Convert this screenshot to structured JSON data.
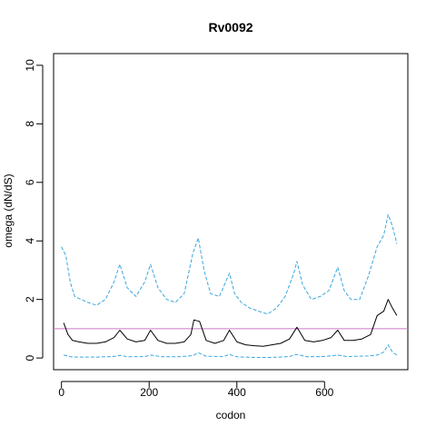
{
  "chart_data": {
    "type": "line",
    "title": "Rv0092",
    "xlabel": "codon",
    "ylabel": "omega (dN/dS)",
    "xlim": [
      -18,
      790
    ],
    "ylim": [
      -0.4,
      10.4
    ],
    "x_ticks": [
      0,
      200,
      400,
      600
    ],
    "y_ticks": [
      0,
      2,
      4,
      6,
      8,
      10
    ],
    "reference_line": {
      "y": 1,
      "color": "#CC79C8"
    },
    "colors": {
      "estimate": "#000000",
      "bounds": "#3BA7DD"
    },
    "series": [
      {
        "role": "upper",
        "style": "dashed",
        "x": [
          0,
          10,
          20,
          30,
          45,
          60,
          80,
          100,
          120,
          133,
          150,
          170,
          190,
          203,
          220,
          240,
          260,
          280,
          300,
          312,
          325,
          340,
          360,
          383,
          395,
          410,
          430,
          450,
          470,
          490,
          510,
          530,
          537,
          550,
          570,
          590,
          610,
          630,
          645,
          660,
          680,
          700,
          720,
          735,
          745,
          755,
          765
        ],
        "y": [
          3.8,
          3.5,
          2.6,
          2.1,
          2.0,
          1.9,
          1.8,
          2.0,
          2.6,
          3.2,
          2.4,
          2.1,
          2.6,
          3.2,
          2.4,
          2.0,
          1.9,
          2.2,
          3.6,
          4.1,
          3.0,
          2.2,
          2.1,
          2.9,
          2.2,
          1.9,
          1.7,
          1.6,
          1.5,
          1.7,
          2.1,
          2.9,
          3.3,
          2.5,
          2.0,
          2.1,
          2.3,
          3.1,
          2.3,
          2.0,
          2.0,
          2.8,
          3.8,
          4.2,
          4.9,
          4.5,
          3.9
        ]
      },
      {
        "role": "estimate",
        "style": "solid",
        "x": [
          5,
          15,
          25,
          40,
          60,
          80,
          100,
          120,
          133,
          150,
          170,
          190,
          203,
          220,
          240,
          260,
          280,
          295,
          302,
          315,
          330,
          350,
          370,
          383,
          400,
          420,
          440,
          460,
          480,
          500,
          520,
          537,
          555,
          575,
          595,
          615,
          630,
          645,
          665,
          685,
          705,
          720,
          735,
          745,
          755,
          765
        ],
        "y": [
          1.2,
          0.8,
          0.6,
          0.55,
          0.5,
          0.5,
          0.55,
          0.7,
          0.95,
          0.65,
          0.55,
          0.6,
          0.95,
          0.6,
          0.5,
          0.5,
          0.55,
          0.8,
          1.3,
          1.25,
          0.6,
          0.5,
          0.6,
          0.95,
          0.55,
          0.45,
          0.42,
          0.4,
          0.45,
          0.5,
          0.65,
          1.05,
          0.6,
          0.55,
          0.6,
          0.7,
          0.95,
          0.6,
          0.6,
          0.65,
          0.8,
          1.45,
          1.6,
          2.0,
          1.7,
          1.45
        ]
      },
      {
        "role": "lower",
        "style": "dashed",
        "x": [
          5,
          20,
          40,
          80,
          120,
          133,
          150,
          190,
          203,
          230,
          270,
          300,
          312,
          330,
          370,
          383,
          400,
          440,
          480,
          520,
          537,
          560,
          600,
          630,
          650,
          700,
          720,
          735,
          745,
          755,
          765
        ],
        "y": [
          0.1,
          0.04,
          0.03,
          0.03,
          0.05,
          0.09,
          0.04,
          0.05,
          0.1,
          0.04,
          0.04,
          0.08,
          0.18,
          0.06,
          0.05,
          0.12,
          0.04,
          0.02,
          0.02,
          0.05,
          0.12,
          0.04,
          0.05,
          0.1,
          0.05,
          0.07,
          0.1,
          0.2,
          0.45,
          0.2,
          0.1
        ]
      }
    ],
    "grid": false,
    "legend": null
  }
}
